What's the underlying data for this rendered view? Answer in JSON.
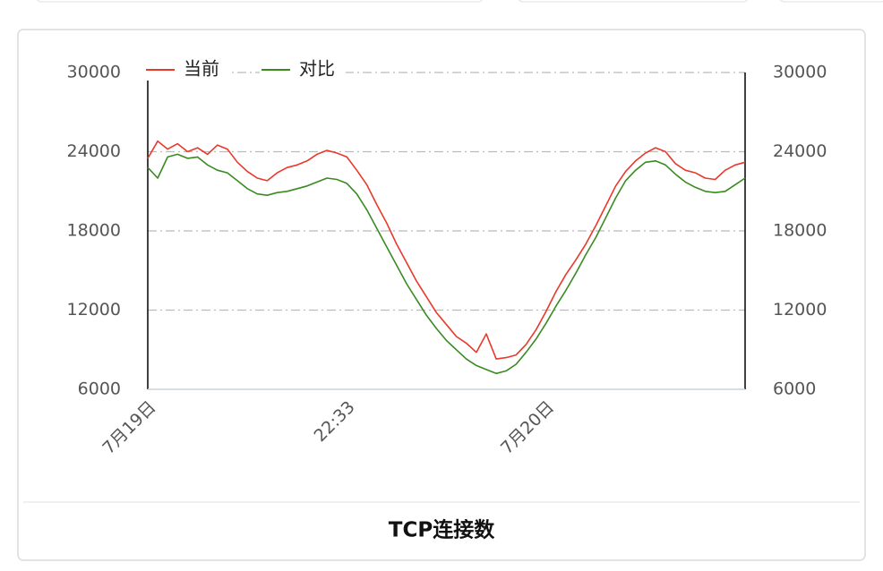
{
  "chart_data": {
    "type": "line",
    "title": "TCP连接数",
    "categories": [
      "7月19日",
      null,
      null,
      null,
      null,
      null,
      null,
      null,
      null,
      null,
      null,
      null,
      null,
      null,
      null,
      null,
      null,
      null,
      null,
      null,
      "22:33",
      null,
      null,
      null,
      null,
      null,
      null,
      null,
      null,
      null,
      null,
      null,
      null,
      null,
      null,
      null,
      null,
      null,
      null,
      null,
      "7月20日",
      null,
      null,
      null,
      null,
      null,
      null,
      null,
      null,
      null,
      null,
      null,
      null,
      null,
      null,
      null,
      null,
      null,
      null,
      null,
      null
    ],
    "series": [
      {
        "name": "当前",
        "color": "#e8392b",
        "values": [
          23500,
          24800,
          24200,
          24600,
          24000,
          24300,
          23800,
          24500,
          24200,
          23200,
          22500,
          22000,
          21800,
          22400,
          22800,
          23000,
          23300,
          23800,
          24100,
          23900,
          23600,
          22600,
          21500,
          20000,
          18600,
          17000,
          15600,
          14200,
          13000,
          11800,
          10900,
          10000,
          9500,
          8800,
          10200,
          8300,
          8400,
          8600,
          9400,
          10500,
          11900,
          13400,
          14700,
          15800,
          17000,
          18400,
          19900,
          21400,
          22500,
          23300,
          23900,
          24300,
          24000,
          23100,
          22600,
          22400,
          22000,
          21900,
          22600,
          23000,
          23200
        ]
      },
      {
        "name": "对比",
        "color": "#3a8a22",
        "values": [
          22800,
          22000,
          23600,
          23800,
          23500,
          23600,
          23000,
          22600,
          22400,
          21800,
          21200,
          20800,
          20700,
          20900,
          21000,
          21200,
          21400,
          21700,
          22000,
          21900,
          21600,
          20800,
          19600,
          18200,
          16800,
          15400,
          14000,
          12800,
          11600,
          10600,
          9700,
          9000,
          8300,
          7800,
          7500,
          7200,
          7400,
          7900,
          8800,
          9800,
          11000,
          12300,
          13500,
          14800,
          16200,
          17500,
          19000,
          20500,
          21800,
          22600,
          23200,
          23300,
          23000,
          22300,
          21700,
          21300,
          21000,
          20900,
          21000,
          21500,
          22000
        ]
      }
    ],
    "ylim": [
      6000,
      30000
    ],
    "yticks": [
      6000,
      12000,
      18000,
      24000,
      30000
    ],
    "y2lim": [
      6000,
      30000
    ],
    "y2ticks": [
      6000,
      12000,
      18000,
      24000,
      30000
    ],
    "grid": true
  }
}
